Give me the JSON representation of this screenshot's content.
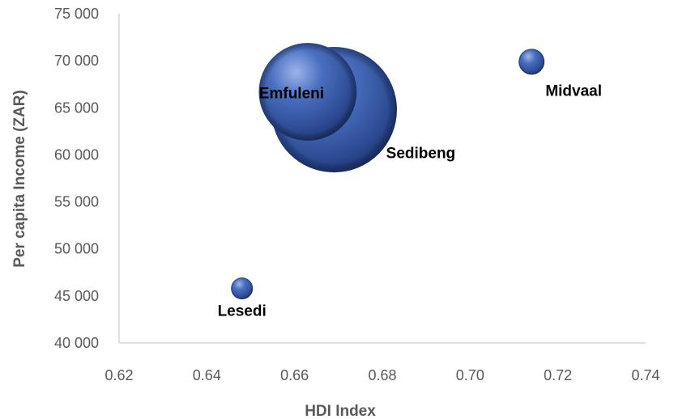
{
  "chart_data": {
    "type": "bubble",
    "title": "",
    "xlabel": "HDI Index",
    "ylabel": "Per capita Income (ZAR)",
    "xlim": [
      0.62,
      0.74
    ],
    "ylim": [
      40000,
      75000
    ],
    "x_ticks": [
      "0.62",
      "0.64",
      "0.66",
      "0.68",
      "0.70",
      "0.72",
      "0.74"
    ],
    "y_ticks": [
      "40 000",
      "45 000",
      "50 000",
      "55 000",
      "60 000",
      "65 000",
      "70 000",
      "75 000"
    ],
    "grid": false,
    "bubble_color": "#3a5ca8",
    "points": [
      {
        "label": "Lesedi",
        "x": 0.648,
        "y": 45800,
        "size": 1
      },
      {
        "label": "Midvaal",
        "x": 0.714,
        "y": 69900,
        "size": 1.4
      },
      {
        "label": "Sedibeng",
        "x": 0.669,
        "y": 64800,
        "size": 33
      },
      {
        "label": "Emfuleni",
        "x": 0.663,
        "y": 66700,
        "size": 20
      }
    ]
  }
}
